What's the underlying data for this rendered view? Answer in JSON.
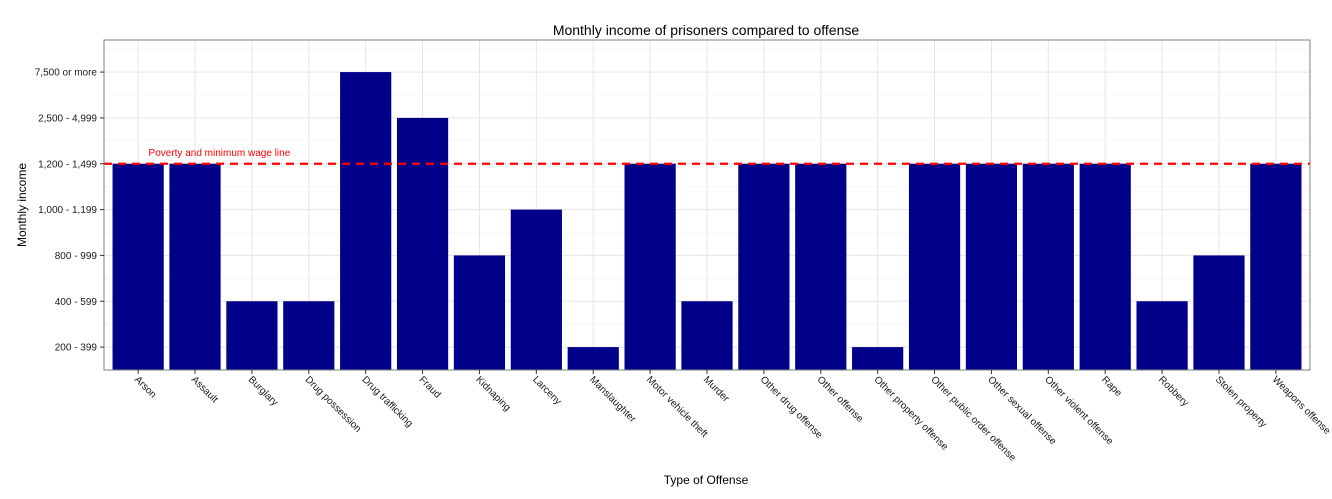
{
  "colors": {
    "bar": "#000088",
    "reference_line": "#ff0000",
    "grid": "#e5e5e5",
    "panel_border": "#7f7f7f"
  },
  "chart_data": {
    "type": "bar",
    "title": "Monthly income of prisoners compared to offense",
    "xlabel": "Type of Offense",
    "ylabel": "Monthly income",
    "grid": true,
    "y_levels": [
      "200 - 399",
      "400 - 599",
      "800 - 999",
      "1,000 - 1,199",
      "1,200 - 1,499",
      "2,500 - 4,999",
      "7,500 or more"
    ],
    "categories": [
      "Arson",
      "Assault",
      "Burglary",
      "Drug possession",
      "Drug trafficking",
      "Fraud",
      "Kidnaping",
      "Larceny",
      "Manslaughter",
      "Motor vehicle theft",
      "Murder",
      "Other drug offense",
      "Other offense",
      "Other property offense",
      "Other public order offense",
      "Other sexual offense",
      "Other violent offense",
      "Rape",
      "Robbery",
      "Stolen property",
      "Weapons offense"
    ],
    "values": [
      "1,200 - 1,499",
      "1,200 - 1,499",
      "400 - 599",
      "400 - 599",
      "7,500 or more",
      "2,500 - 4,999",
      "800 - 999",
      "1,000 - 1,199",
      "200 - 399",
      "1,200 - 1,499",
      "400 - 599",
      "1,200 - 1,499",
      "1,200 - 1,499",
      "200 - 399",
      "1,200 - 1,499",
      "1,200 - 1,499",
      "1,200 - 1,499",
      "1,200 - 1,499",
      "400 - 599",
      "800 - 999",
      "1,200 - 1,499"
    ],
    "reference_line": {
      "value": "1,200 - 1,499",
      "label": "Poverty and minimum wage line",
      "style": "dashed"
    }
  }
}
